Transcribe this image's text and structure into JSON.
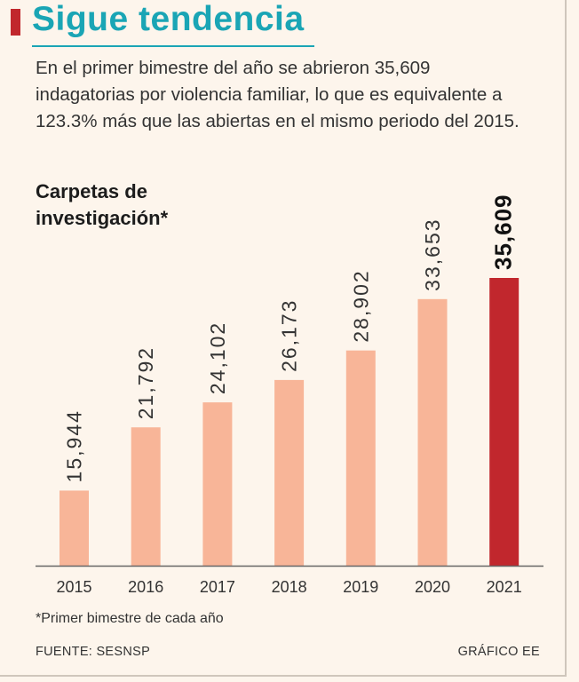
{
  "header": {
    "title": "Sigue tendencia",
    "description": "En el primer bimestre del año se abrieron 35,609 indagatorias por violencia familiar, lo que es equivalente a 123.3% más que las abiertas en el mismo periodo del 2015.",
    "subtitle_line1": "Carpetas de",
    "subtitle_line2": "investigación*"
  },
  "chart_data": {
    "type": "bar",
    "title": "Carpetas de investigación*",
    "categories": [
      "2015",
      "2016",
      "2017",
      "2018",
      "2019",
      "2020",
      "2021"
    ],
    "values": [
      15944,
      21792,
      24102,
      26173,
      28902,
      33653,
      35609
    ],
    "value_labels": [
      "15,944",
      "21,792",
      "24,102",
      "26,173",
      "28,902",
      "33,653",
      "35,609"
    ],
    "highlight_index": 6,
    "ylim": [
      9000,
      36000
    ],
    "xlabel": "",
    "ylabel": "",
    "grid": false,
    "colors": {
      "bar": "#f8b598",
      "highlight": "#c1272d",
      "axis": "#666666"
    }
  },
  "footer": {
    "footnote": "*Primer bimestre de cada año",
    "source": "FUENTE: SESNSP",
    "credit": "GRÁFICO EE"
  }
}
